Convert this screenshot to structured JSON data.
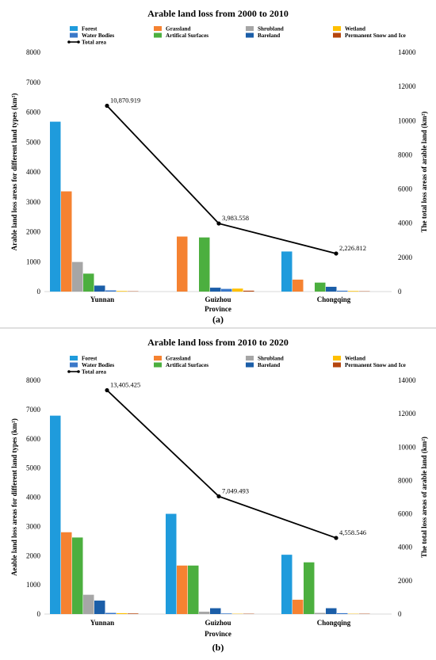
{
  "colors": {
    "Forest": "#1f9bdc",
    "Grassland": "#f58231",
    "Shrubland": "#a6a6a6",
    "Wetland": "#ffc000",
    "Water Bodies": "#3a78c9",
    "Artifical Surfaces": "#4caf3f",
    "Bareland": "#1b5ea8",
    "Permanent Snow and Ice": "#b5450e",
    "Total area": "#000000"
  },
  "chart_data": [
    {
      "type": "bar",
      "title": "Arable land loss from 2000 to 2010",
      "xlabel": "Province",
      "ylabel": "Arable land loss areas for different land types (km²)",
      "y2label": "The total loss areas of arable land (km²)",
      "caption": "(a)",
      "categories": [
        "Yunnan",
        "Guizhou",
        "Chongqing"
      ],
      "ylim": [
        0,
        8000
      ],
      "yticks": [
        "0",
        "1000",
        "2000",
        "3000",
        "4000",
        "5000",
        "6000",
        "7000",
        "8000"
      ],
      "y2lim": [
        0,
        14000
      ],
      "y2ticks": [
        "0",
        "2000",
        "4000",
        "6000",
        "8000",
        "10000",
        "12000",
        "14000"
      ],
      "legend_order": [
        "Forest",
        "Grassland",
        "Shrubland",
        "Wetland",
        "Water Bodies",
        "Artifical Surfaces",
        "Bareland",
        "Permanent Snow and Ice",
        "Total area"
      ],
      "legend_position": "top",
      "series": [
        {
          "name": "Forest",
          "values": [
            5680,
            0,
            1340
          ]
        },
        {
          "name": "Grassland",
          "values": [
            3350,
            1840,
            400
          ]
        },
        {
          "name": "Shrubland",
          "values": [
            990,
            0,
            0
          ]
        },
        {
          "name": "Artifical Surfaces",
          "values": [
            600,
            1810,
            300
          ]
        },
        {
          "name": "Bareland",
          "values": [
            200,
            130,
            160
          ]
        },
        {
          "name": "Water Bodies",
          "values": [
            40,
            90,
            30
          ]
        },
        {
          "name": "Wetland",
          "values": [
            20,
            100,
            20
          ]
        },
        {
          "name": "Permanent Snow and Ice",
          "values": [
            10,
            30,
            10
          ]
        }
      ],
      "bar_order": [
        "Forest",
        "Grassland",
        "Shrubland",
        "Artifical Surfaces",
        "Bareland",
        "Water Bodies",
        "Wetland",
        "Permanent Snow and Ice"
      ],
      "line": {
        "name": "Total area",
        "values": [
          10870.919,
          3983.558,
          2226.812
        ],
        "labels": [
          "10,870.919",
          "3,983.558",
          "2,226.812"
        ]
      }
    },
    {
      "type": "bar",
      "title": "Arable land loss from 2010 to 2020",
      "xlabel": "Province",
      "ylabel": "Aeable land loss areas for different land types (km²)",
      "y2label": "The total loss areas of arable land (km²)",
      "caption": "(b)",
      "categories": [
        "Yunnan",
        "Guizhou",
        "Chongqing"
      ],
      "ylim": [
        0,
        8000
      ],
      "yticks": [
        "0",
        "1000",
        "2000",
        "3000",
        "4000",
        "5000",
        "6000",
        "7000",
        "8000"
      ],
      "y2lim": [
        0,
        14000
      ],
      "y2ticks": [
        "0",
        "2000",
        "4000",
        "6000",
        "8000",
        "10000",
        "12000",
        "14000"
      ],
      "legend_order": [
        "Forest",
        "Grassland",
        "Shrubland",
        "Wetland",
        "Water Bodies",
        "Artifical Surfaces",
        "Bareland",
        "Permanent Snow and Ice",
        "Total area"
      ],
      "legend_position": "top",
      "series": [
        {
          "name": "Forest",
          "values": [
            6790,
            3430,
            2030
          ]
        },
        {
          "name": "Grassland",
          "values": [
            2800,
            1660,
            490
          ]
        },
        {
          "name": "Artifical Surfaces",
          "values": [
            2620,
            1660,
            1770
          ]
        },
        {
          "name": "Shrubland",
          "values": [
            660,
            80,
            40
          ]
        },
        {
          "name": "Bareland",
          "values": [
            460,
            200,
            200
          ]
        },
        {
          "name": "Water Bodies",
          "values": [
            40,
            20,
            30
          ]
        },
        {
          "name": "Wetland",
          "values": [
            30,
            10,
            10
          ]
        },
        {
          "name": "Permanent Snow and Ice",
          "values": [
            20,
            10,
            10
          ]
        }
      ],
      "bar_order": [
        "Forest",
        "Grassland",
        "Artifical Surfaces",
        "Shrubland",
        "Bareland",
        "Water Bodies",
        "Wetland",
        "Permanent Snow and Ice"
      ],
      "line": {
        "name": "Total area",
        "values": [
          13405.425,
          7049.493,
          4558.546
        ],
        "labels": [
          "13,405.425",
          "7,049.493",
          "4,558.546"
        ]
      }
    }
  ]
}
